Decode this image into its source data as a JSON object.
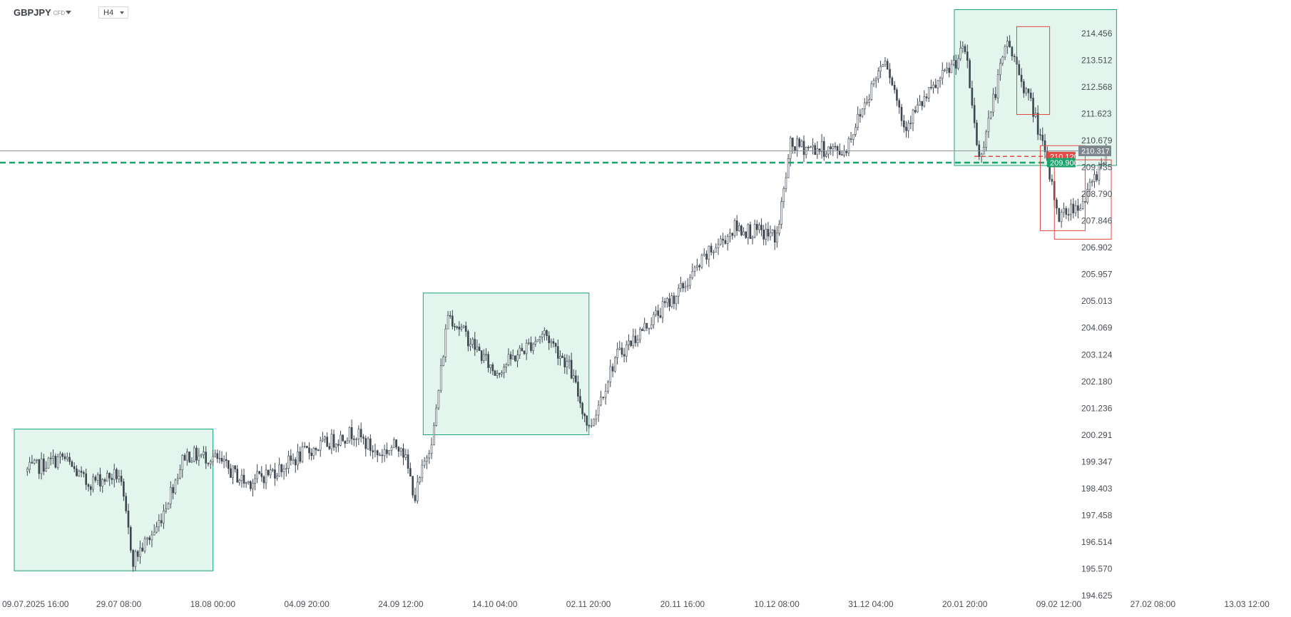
{
  "toolbar": {
    "symbol": "GBPJPY",
    "symbol_type": "CFD",
    "timeframe": "H4"
  },
  "colors": {
    "background": "#ffffff",
    "candle": "#3d4650",
    "zone_fill": "#e3f6ee",
    "zone_border": "#19a37a",
    "red_box": "#e0473f",
    "support_line": "#1aa36b",
    "current_price_line": "#8a9097",
    "current_price_badge": "#7d858d",
    "bid_ask_badge": "#e34b4b"
  },
  "chart_data": {
    "type": "candlestick",
    "symbol": "GBPJPY",
    "timeframe": "H4",
    "x_tick_labels": [
      "09.07.2025 16:00",
      "29.07 08:00",
      "18.08 00:00",
      "04.09 20:00",
      "24.09 12:00",
      "14.10 04:00",
      "02.11 20:00",
      "20.11 16:00",
      "10.12 08:00",
      "31.12 04:00",
      "20.01 20:00",
      "09.02 12:00",
      "27.02 08:00",
      "13.03 12:00"
    ],
    "y_tick_labels": [
      214.456,
      213.512,
      212.568,
      211.623,
      210.679,
      209.735,
      208.79,
      207.846,
      206.902,
      205.957,
      205.013,
      204.069,
      203.124,
      202.18,
      201.236,
      200.291,
      199.347,
      198.403,
      197.458,
      196.514,
      195.57,
      194.625
    ],
    "ylim": [
      194.625,
      215.4
    ],
    "price_path": [
      {
        "date": "09.07.2025 16:00",
        "close": 199.0
      },
      {
        "date": "17.07.2025",
        "close": 199.5
      },
      {
        "date": "22.07.2025",
        "close": 198.6
      },
      {
        "date": "29.07 08:00",
        "close": 198.9
      },
      {
        "date": "01.08.2025",
        "close": 195.9
      },
      {
        "date": "06.08.2025",
        "close": 197.0
      },
      {
        "date": "12.08.2025",
        "close": 199.6
      },
      {
        "date": "18.08 00:00",
        "close": 199.5
      },
      {
        "date": "24.08.2025",
        "close": 198.6
      },
      {
        "date": "30.08.2025",
        "close": 199.1
      },
      {
        "date": "04.09 20:00",
        "close": 199.7
      },
      {
        "date": "14.09.2025",
        "close": 200.4
      },
      {
        "date": "19.09.2025",
        "close": 199.6
      },
      {
        "date": "24.09 12:00",
        "close": 200.0
      },
      {
        "date": "27.09.2025",
        "close": 198.1
      },
      {
        "date": "01.10.2025",
        "close": 200.5
      },
      {
        "date": "04.10.2025",
        "close": 204.6
      },
      {
        "date": "14.10 04:00",
        "close": 202.5
      },
      {
        "date": "24.10.2025",
        "close": 203.9
      },
      {
        "date": "29.10.2025",
        "close": 202.7
      },
      {
        "date": "02.11 20:00",
        "close": 200.5
      },
      {
        "date": "07.11.2025",
        "close": 203.0
      },
      {
        "date": "20.11 16:00",
        "close": 205.5
      },
      {
        "date": "25.11.2025",
        "close": 206.6
      },
      {
        "date": "01.12.2025",
        "close": 207.6
      },
      {
        "date": "10.12 08:00",
        "close": 207.3
      },
      {
        "date": "13.12.2025",
        "close": 210.5
      },
      {
        "date": "25.12.2025",
        "close": 210.3
      },
      {
        "date": "03.01.2026",
        "close": 213.7
      },
      {
        "date": "07.01.2026",
        "close": 211.2
      },
      {
        "date": "20.01 20:00",
        "close": 213.9
      },
      {
        "date": "23.01.2026",
        "close": 210.0
      },
      {
        "date": "29.01.2026",
        "close": 214.2
      },
      {
        "date": "04.02.2026",
        "close": 211.5
      },
      {
        "date": "09.02 12:00",
        "close": 208.0
      },
      {
        "date": "14.02.2026",
        "close": 208.6
      },
      {
        "date": "18.02.2026",
        "close": 210.3
      }
    ],
    "zones": [
      {
        "x_start": "09.07.2025 16:00",
        "x_end": "18.08 00:00",
        "y_low": 195.5,
        "y_high": 200.5
      },
      {
        "x_start": "01.10.2025",
        "x_end": "02.11 20:00",
        "y_low": 200.3,
        "y_high": 205.3
      },
      {
        "x_start": "20.01 20:00",
        "x_end": "20.02.2026",
        "y_low": 209.8,
        "y_high": 215.3
      }
    ],
    "boxes": [
      {
        "x_start": "31.01.2026",
        "x_end": "07.02.2026",
        "y_low": 211.6,
        "y_high": 214.7
      },
      {
        "x_start": "05.02.2026",
        "x_end": "14.02.2026",
        "y_low": 207.5,
        "y_high": 210.5
      },
      {
        "x_start": "08.02.2026",
        "x_end": "19.02.2026",
        "y_low": 207.2,
        "y_high": 210.0
      }
    ],
    "horizontal_lines": [
      {
        "value": 210.317,
        "style": "solid",
        "label": "210.317"
      },
      {
        "value": 209.9,
        "style": "dashed",
        "label": "209.900"
      },
      {
        "value": 210.12,
        "style": "dashed",
        "label": "210.120"
      }
    ],
    "grid": false
  }
}
